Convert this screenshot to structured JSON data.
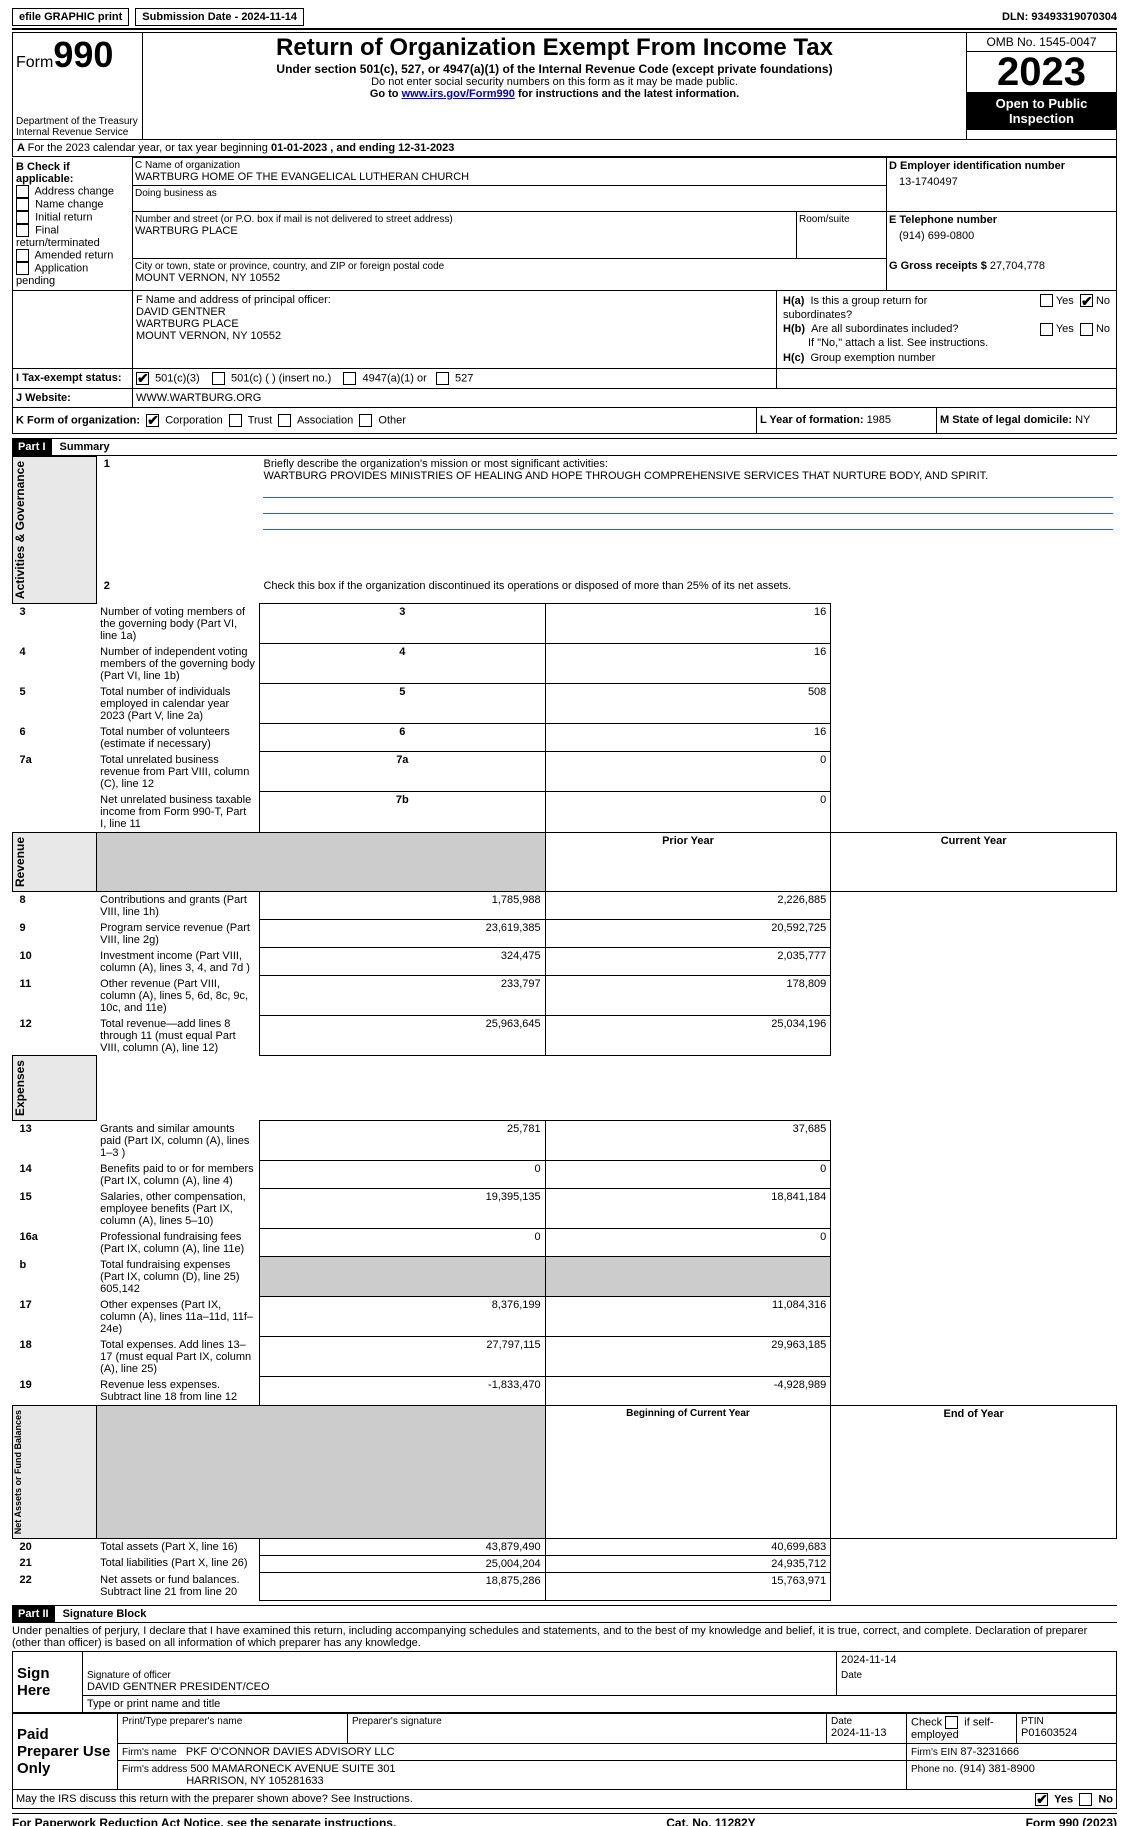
{
  "topbar": {
    "efile_label": "efile GRAPHIC print",
    "submission_label": "Submission Date - 2024-11-14",
    "dln_label": "DLN: 93493319070304"
  },
  "header": {
    "form_word": "Form",
    "form_num": "990",
    "dept": "Department of the Treasury",
    "irs": "Internal Revenue Service",
    "title": "Return of Organization Exempt From Income Tax",
    "subtitle": "Under section 501(c), 527, or 4947(a)(1) of the Internal Revenue Code (except private foundations)",
    "note1": "Do not enter social security numbers on this form as it may be made public.",
    "note2_pre": "Go to ",
    "note2_link": "www.irs.gov/Form990",
    "note2_post": " for instructions and the latest information.",
    "omb": "OMB No. 1545-0047",
    "year": "2023",
    "open_pub": "Open to Public Inspection"
  },
  "periodA": {
    "text_pre": "For the 2023 calendar year, or tax year beginning ",
    "begin": "01-01-2023",
    "mid": " , and ending ",
    "end": "12-31-2023"
  },
  "secB": {
    "label": "B Check if applicable:",
    "items": [
      "Address change",
      "Name change",
      "Initial return",
      "Final return/terminated",
      "Amended return",
      "Application pending"
    ]
  },
  "secC": {
    "name_label": "C Name of organization",
    "name": "WARTBURG HOME OF THE EVANGELICAL LUTHERAN CHURCH",
    "dba_label": "Doing business as",
    "street_label": "Number and street (or P.O. box if mail is not delivered to street address)",
    "room_label": "Room/suite",
    "street": "WARTBURG PLACE",
    "city_label": "City or town, state or province, country, and ZIP or foreign postal code",
    "city": "MOUNT VERNON, NY  10552"
  },
  "secD": {
    "label": "D Employer identification number",
    "value": "13-1740497"
  },
  "secE": {
    "label": "E Telephone number",
    "value": "(914) 699-0800"
  },
  "secG": {
    "label": "G Gross receipts $",
    "value": "27,704,778"
  },
  "secF": {
    "label": "F  Name and address of principal officer:",
    "line1": "DAVID GENTNER",
    "line2": "WARTBURG PLACE",
    "line3": "MOUNT VERNON, NY  10552"
  },
  "secH": {
    "a_label": "H(a)  Is this a group return for subordinates?",
    "b_label": "H(b)  Are all subordinates included?",
    "b_note": "If \"No,\" attach a list. See instructions.",
    "c_label": "H(c)  Group exemption number",
    "yes": "Yes",
    "no": "No"
  },
  "secI": {
    "label": "I   Tax-exempt status:",
    "opt1": "501(c)(3)",
    "opt2": "501(c) (  ) (insert no.)",
    "opt3": "4947(a)(1) or",
    "opt4": "527"
  },
  "secJ": {
    "label": "J   Website:",
    "value": "WWW.WARTBURG.ORG"
  },
  "secK": {
    "label": "K Form of organization:",
    "corp": "Corporation",
    "trust": "Trust",
    "assoc": "Association",
    "other": "Other"
  },
  "secL": {
    "label": "L Year of formation: ",
    "value": "1985"
  },
  "secM": {
    "label": "M State of legal domicile: ",
    "value": "NY"
  },
  "part1": {
    "bar": "Part I",
    "title": "Summary",
    "q1_label": "Briefly describe the organization's mission or most significant activities:",
    "q1_value": "WARTBURG PROVIDES MINISTRIES OF HEALING AND HOPE THROUGH COMPREHENSIVE SERVICES THAT NURTURE BODY, AND SPIRIT.",
    "q2": "Check this box        if the organization discontinued its operations or disposed of more than 25% of its net assets.",
    "sections": {
      "gov": "Activities & Governance",
      "rev": "Revenue",
      "exp": "Expenses",
      "net": "Net Assets or Fund Balances"
    },
    "gov_rows": [
      {
        "n": "3",
        "label": "Number of voting members of the governing body (Part VI, line 1a)",
        "code": "3",
        "val": "16"
      },
      {
        "n": "4",
        "label": "Number of independent voting members of the governing body (Part VI, line 1b)",
        "code": "4",
        "val": "16"
      },
      {
        "n": "5",
        "label": "Total number of individuals employed in calendar year 2023 (Part V, line 2a)",
        "code": "5",
        "val": "508"
      },
      {
        "n": "6",
        "label": "Total number of volunteers (estimate if necessary)",
        "code": "6",
        "val": "16"
      },
      {
        "n": "7a",
        "label": "Total unrelated business revenue from Part VIII, column (C), line 12",
        "code": "7a",
        "val": "0"
      },
      {
        "n": "",
        "label": "Net unrelated business taxable income from Form 990-T, Part I, line 11",
        "code": "7b",
        "val": "0"
      }
    ],
    "col_prior": "Prior Year",
    "col_current": "Current Year",
    "rev_rows": [
      {
        "n": "8",
        "label": "Contributions and grants (Part VIII, line 1h)",
        "p": "1,785,988",
        "c": "2,226,885"
      },
      {
        "n": "9",
        "label": "Program service revenue (Part VIII, line 2g)",
        "p": "23,619,385",
        "c": "20,592,725"
      },
      {
        "n": "10",
        "label": "Investment income (Part VIII, column (A), lines 3, 4, and 7d )",
        "p": "324,475",
        "c": "2,035,777"
      },
      {
        "n": "11",
        "label": "Other revenue (Part VIII, column (A), lines 5, 6d, 8c, 9c, 10c, and 11e)",
        "p": "233,797",
        "c": "178,809"
      },
      {
        "n": "12",
        "label": "Total revenue—add lines 8 through 11 (must equal Part VIII, column (A), line 12)",
        "p": "25,963,645",
        "c": "25,034,196"
      }
    ],
    "exp_rows": [
      {
        "n": "13",
        "label": "Grants and similar amounts paid (Part IX, column (A), lines 1–3 )",
        "p": "25,781",
        "c": "37,685"
      },
      {
        "n": "14",
        "label": "Benefits paid to or for members (Part IX, column (A), line 4)",
        "p": "0",
        "c": "0"
      },
      {
        "n": "15",
        "label": "Salaries, other compensation, employee benefits (Part IX, column (A), lines 5–10)",
        "p": "19,395,135",
        "c": "18,841,184"
      },
      {
        "n": "16a",
        "label": "Professional fundraising fees (Part IX, column (A), line 11e)",
        "p": "0",
        "c": "0"
      },
      {
        "n": "b",
        "label": "Total fundraising expenses (Part IX, column (D), line 25) 605,142",
        "p": "",
        "c": "",
        "shade": true
      },
      {
        "n": "17",
        "label": "Other expenses (Part IX, column (A), lines 11a–11d, 11f–24e)",
        "p": "8,376,199",
        "c": "11,084,316"
      },
      {
        "n": "18",
        "label": "Total expenses. Add lines 13–17 (must equal Part IX, column (A), line 25)",
        "p": "27,797,115",
        "c": "29,963,185"
      },
      {
        "n": "19",
        "label": "Revenue less expenses. Subtract line 18 from line 12",
        "p": "-1,833,470",
        "c": "-4,928,989"
      }
    ],
    "col_beg": "Beginning of Current Year",
    "col_end": "End of Year",
    "net_rows": [
      {
        "n": "20",
        "label": "Total assets (Part X, line 16)",
        "p": "43,879,490",
        "c": "40,699,683"
      },
      {
        "n": "21",
        "label": "Total liabilities (Part X, line 26)",
        "p": "25,004,204",
        "c": "24,935,712"
      },
      {
        "n": "22",
        "label": "Net assets or fund balances. Subtract line 21 from line 20",
        "p": "18,875,286",
        "c": "15,763,971"
      }
    ]
  },
  "part2": {
    "bar": "Part II",
    "title": "Signature Block",
    "perjury": "Under penalties of perjury, I declare that I have examined this return, including accompanying schedules and statements, and to the best of my knowledge and belief, it is true, correct, and complete. Declaration of preparer (other than officer) is based on all information of which preparer has any knowledge.",
    "sign_here": "Sign Here",
    "sig_officer_label": "Signature of officer",
    "sig_officer_date": "2024-11-14",
    "date_label": "Date",
    "officer_name": "DAVID GENTNER PRESIDENT/CEO",
    "type_label": "Type or print name and title",
    "paid": "Paid Preparer Use Only",
    "prep_name_label": "Print/Type preparer's name",
    "prep_sig_label": "Preparer's signature",
    "prep_date_label": "Date",
    "prep_date": "2024-11-13",
    "check_self": "Check        if self-employed",
    "ptin_label": "PTIN",
    "ptin": "P01603524",
    "firm_name_label": "Firm's name",
    "firm_name": "PKF O'CONNOR DAVIES ADVISORY LLC",
    "firm_ein_label": "Firm's EIN",
    "firm_ein": "87-3231666",
    "firm_addr_label": "Firm's address",
    "firm_addr1": "500 MAMARONECK AVENUE SUITE 301",
    "firm_addr2": "HARRISON, NY  105281633",
    "firm_phone_label": "Phone no.",
    "firm_phone": "(914) 381-8900",
    "discuss": "May the IRS discuss this return with the preparer shown above? See Instructions.",
    "yes": "Yes",
    "no": "No"
  },
  "footer": {
    "left": "For Paperwork Reduction Act Notice, see the separate instructions.",
    "mid": "Cat. No. 11282Y",
    "right_pre": "Form ",
    "right_bold": "990",
    "right_post": " (2023)"
  }
}
